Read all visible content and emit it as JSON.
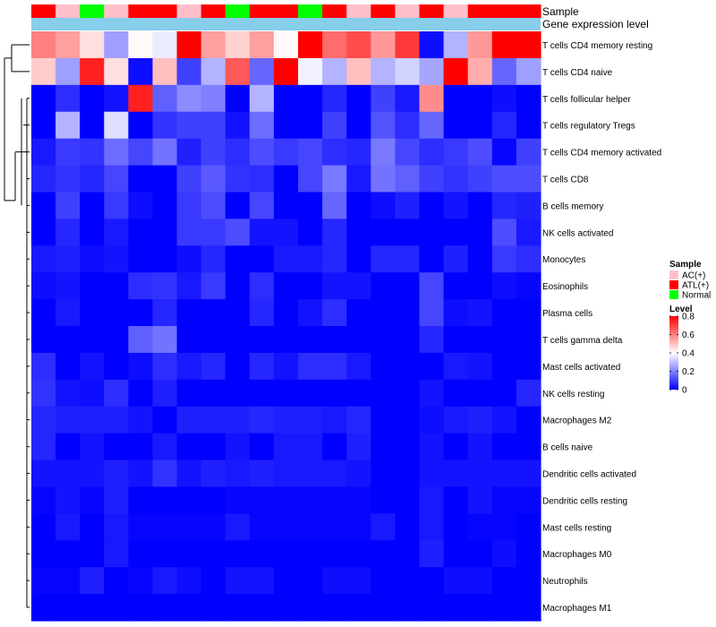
{
  "chart_data": {
    "type": "heatmap",
    "title": "",
    "annotation_tracks": [
      {
        "name": "Sample",
        "label": "Sample"
      },
      {
        "name": "Gene expression level",
        "label": "Gene expression level"
      }
    ],
    "sample_groups": [
      "ATL(+)",
      "AC(+)",
      "Normal",
      "AC(+)",
      "ATL(+)",
      "ATL(+)",
      "AC(+)",
      "ATL(+)",
      "Normal",
      "ATL(+)",
      "ATL(+)",
      "Normal",
      "ATL(+)",
      "AC(+)",
      "ATL(+)",
      "AC(+)",
      "ATL(+)",
      "AC(+)",
      "ATL(+)",
      "ATL(+)",
      "ATL(+)"
    ],
    "rows": [
      "T cells CD4 memory resting",
      "T cells CD4 naive",
      "T cells follicular helper",
      "T cells regulatory  Tregs",
      "T cells CD4 memory activated",
      "T cells CD8",
      "B cells memory",
      "NK cells activated",
      "Monocytes",
      "Eosinophils",
      "Plasma cells",
      "T cells gamma delta",
      "Mast cells activated",
      "NK cells resting",
      "Macrophages M2",
      "B cells naive",
      "Dendritic cells activated",
      "Dendritic cells resting",
      "Mast cells resting",
      "Macrophages M0",
      "Neutrophils",
      "Macrophages M1"
    ],
    "values": [
      [
        0.6,
        0.55,
        0.45,
        0.25,
        0.41,
        0.37,
        0.8,
        0.55,
        0.47,
        0.55,
        0.41,
        0.8,
        0.63,
        0.68,
        0.56,
        0.71,
        0.02,
        0.28,
        0.56,
        0.8,
        0.8
      ],
      [
        0.48,
        0.25,
        0.75,
        0.45,
        0.02,
        0.5,
        0.1,
        0.28,
        0.66,
        0.16,
        0.8,
        0.38,
        0.28,
        0.5,
        0.28,
        0.33,
        0.26,
        0.8,
        0.53,
        0.16,
        0.25
      ],
      [
        0.0,
        0.07,
        0.0,
        0.03,
        0.75,
        0.15,
        0.22,
        0.2,
        0.0,
        0.28,
        0.0,
        0.0,
        0.06,
        0.0,
        0.1,
        0.04,
        0.58,
        0.0,
        0.0,
        0.02,
        0.0
      ],
      [
        0.0,
        0.28,
        0.0,
        0.35,
        0.0,
        0.08,
        0.1,
        0.1,
        0.03,
        0.17,
        0.0,
        0.0,
        0.1,
        0.0,
        0.13,
        0.07,
        0.16,
        0.0,
        0.0,
        0.06,
        0.0
      ],
      [
        0.04,
        0.09,
        0.08,
        0.17,
        0.11,
        0.18,
        0.05,
        0.1,
        0.07,
        0.12,
        0.09,
        0.11,
        0.07,
        0.06,
        0.19,
        0.11,
        0.07,
        0.09,
        0.12,
        0.01,
        0.1
      ],
      [
        0.06,
        0.08,
        0.06,
        0.11,
        0.0,
        0.0,
        0.1,
        0.14,
        0.08,
        0.07,
        0.0,
        0.11,
        0.19,
        0.04,
        0.18,
        0.15,
        0.1,
        0.08,
        0.1,
        0.12,
        0.12
      ],
      [
        0.0,
        0.1,
        0.0,
        0.09,
        0.02,
        0.0,
        0.09,
        0.12,
        0.0,
        0.11,
        0.0,
        0.0,
        0.16,
        0.0,
        0.02,
        0.05,
        0.0,
        0.03,
        0.0,
        0.06,
        0.05
      ],
      [
        0.0,
        0.06,
        0.0,
        0.04,
        0.0,
        0.0,
        0.09,
        0.09,
        0.12,
        0.03,
        0.03,
        0.0,
        0.06,
        0.0,
        0.0,
        0.0,
        0.0,
        0.0,
        0.0,
        0.12,
        0.04
      ],
      [
        0.04,
        0.05,
        0.02,
        0.03,
        0.0,
        0.0,
        0.02,
        0.06,
        0.0,
        0.0,
        0.04,
        0.04,
        0.06,
        0.0,
        0.06,
        0.06,
        0.0,
        0.05,
        0.0,
        0.09,
        0.07
      ],
      [
        0.02,
        0.03,
        0.0,
        0.0,
        0.07,
        0.08,
        0.04,
        0.09,
        0.0,
        0.07,
        0.0,
        0.0,
        0.03,
        0.03,
        0.0,
        0.0,
        0.11,
        0.0,
        0.0,
        0.02,
        0.01
      ],
      [
        0.0,
        0.04,
        0.0,
        0.0,
        0.0,
        0.06,
        0.0,
        0.0,
        0.0,
        0.06,
        0.0,
        0.03,
        0.07,
        0.0,
        0.0,
        0.0,
        0.11,
        0.02,
        0.03,
        0.0,
        0.0
      ],
      [
        0.0,
        0.0,
        0.0,
        0.0,
        0.15,
        0.18,
        0.0,
        0.0,
        0.0,
        0.0,
        0.0,
        0.0,
        0.0,
        0.0,
        0.0,
        0.0,
        0.06,
        0.0,
        0.0,
        0.0,
        0.0
      ],
      [
        0.07,
        0.0,
        0.03,
        0.0,
        0.02,
        0.07,
        0.04,
        0.06,
        0.0,
        0.06,
        0.03,
        0.07,
        0.07,
        0.04,
        0.0,
        0.0,
        0.0,
        0.04,
        0.03,
        0.0,
        0.0
      ],
      [
        0.08,
        0.03,
        0.02,
        0.07,
        0.0,
        0.05,
        0.0,
        0.0,
        0.0,
        0.0,
        0.0,
        0.0,
        0.0,
        0.0,
        0.0,
        0.0,
        0.03,
        0.0,
        0.0,
        0.0,
        0.06
      ],
      [
        0.06,
        0.05,
        0.05,
        0.05,
        0.03,
        0.0,
        0.05,
        0.05,
        0.05,
        0.06,
        0.05,
        0.05,
        0.04,
        0.06,
        0.0,
        0.0,
        0.02,
        0.04,
        0.05,
        0.03,
        0.0
      ],
      [
        0.06,
        0.0,
        0.03,
        0.0,
        0.0,
        0.04,
        0.0,
        0.0,
        0.03,
        0.0,
        0.04,
        0.04,
        0.0,
        0.05,
        0.0,
        0.0,
        0.03,
        0.0,
        0.03,
        0.0,
        0.0
      ],
      [
        0.03,
        0.03,
        0.03,
        0.05,
        0.03,
        0.08,
        0.03,
        0.05,
        0.04,
        0.05,
        0.04,
        0.04,
        0.04,
        0.03,
        0.0,
        0.0,
        0.03,
        0.03,
        0.03,
        0.03,
        0.03
      ],
      [
        0.01,
        0.03,
        0.01,
        0.05,
        0.0,
        0.0,
        0.0,
        0.0,
        0.01,
        0.01,
        0.01,
        0.01,
        0.01,
        0.01,
        0.0,
        0.0,
        0.04,
        0.0,
        0.03,
        0.01,
        0.01
      ],
      [
        0.0,
        0.04,
        0.0,
        0.04,
        0.01,
        0.01,
        0.01,
        0.01,
        0.04,
        0.01,
        0.01,
        0.01,
        0.01,
        0.01,
        0.04,
        0.0,
        0.04,
        0.0,
        0.01,
        0.01,
        0.0
      ],
      [
        0.0,
        0.0,
        0.0,
        0.04,
        0.0,
        0.0,
        0.0,
        0.0,
        0.0,
        0.0,
        0.0,
        0.0,
        0.0,
        0.0,
        0.0,
        0.0,
        0.05,
        0.0,
        0.0,
        0.02,
        0.0
      ],
      [
        0.01,
        0.01,
        0.05,
        0.0,
        0.01,
        0.04,
        0.02,
        0.0,
        0.03,
        0.03,
        0.0,
        0.0,
        0.02,
        0.02,
        0.0,
        0.0,
        0.0,
        0.02,
        0.02,
        0.0,
        0.0
      ],
      [
        0.0,
        0.0,
        0.0,
        0.0,
        0.0,
        0.0,
        0.0,
        0.0,
        0.0,
        0.0,
        0.0,
        0.0,
        0.0,
        0.0,
        0.0,
        0.0,
        0.0,
        0.0,
        0.0,
        0.0,
        0.0
      ]
    ],
    "color_scale": {
      "min": 0,
      "max": 0.8,
      "low": "#0000ff",
      "mid": "#ffffff",
      "high": "#ff0000",
      "mid_value": 0.4
    },
    "expression_bar_color": "#87ceeb",
    "row_dendrogram": true,
    "legend": {
      "sample_title": "Sample",
      "sample_entries": [
        {
          "label": "AC(+)",
          "color": "#ffc0cb"
        },
        {
          "label": "ATL(+)",
          "color": "#ff0000"
        },
        {
          "label": "Normal",
          "color": "#00ff00"
        }
      ],
      "level_title": "Level",
      "level_ticks": [
        "0.8",
        "0.6",
        "0.4",
        "0.2",
        "0"
      ],
      "level_tick_values": [
        0.8,
        0.6,
        0.4,
        0.2,
        0
      ],
      "placement": "right"
    }
  }
}
